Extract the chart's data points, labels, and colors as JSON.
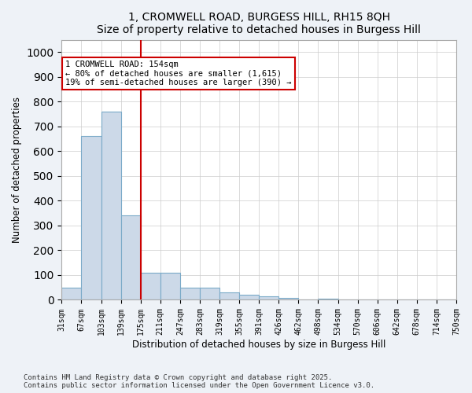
{
  "title": "1, CROMWELL ROAD, BURGESS HILL, RH15 8QH",
  "subtitle": "Size of property relative to detached houses in Burgess Hill",
  "xlabel": "Distribution of detached houses by size in Burgess Hill",
  "ylabel": "Number of detached properties",
  "bar_color": "#ccd9e8",
  "bar_edge_color": "#7aaac8",
  "marker_color": "#cc0000",
  "annotation_box_color": "#cc0000",
  "tick_labels": [
    "31sqm",
    "67sqm",
    "103sqm",
    "139sqm",
    "175sqm",
    "211sqm",
    "247sqm",
    "283sqm",
    "319sqm",
    "355sqm",
    "391sqm",
    "426sqm",
    "462sqm",
    "498sqm",
    "534sqm",
    "570sqm",
    "606sqm",
    "642sqm",
    "678sqm",
    "714sqm",
    "750sqm"
  ],
  "values": [
    50,
    660,
    760,
    340,
    110,
    110,
    50,
    50,
    30,
    20,
    15,
    8,
    0,
    5,
    0,
    0,
    0,
    0,
    0,
    0
  ],
  "ylim": [
    0,
    1050
  ],
  "yticks": [
    0,
    100,
    200,
    300,
    400,
    500,
    600,
    700,
    800,
    900,
    1000
  ],
  "marker_bin_index": 3,
  "annotation_title": "1 CROMWELL ROAD: 154sqm",
  "annotation_line1": "← 80% of detached houses are smaller (1,615)",
  "annotation_line2": "19% of semi-detached houses are larger (390) →",
  "footer_line1": "Contains HM Land Registry data © Crown copyright and database right 2025.",
  "footer_line2": "Contains public sector information licensed under the Open Government Licence v3.0.",
  "background_color": "#eef2f7",
  "plot_background_color": "#ffffff",
  "grid_color": "#cccccc"
}
